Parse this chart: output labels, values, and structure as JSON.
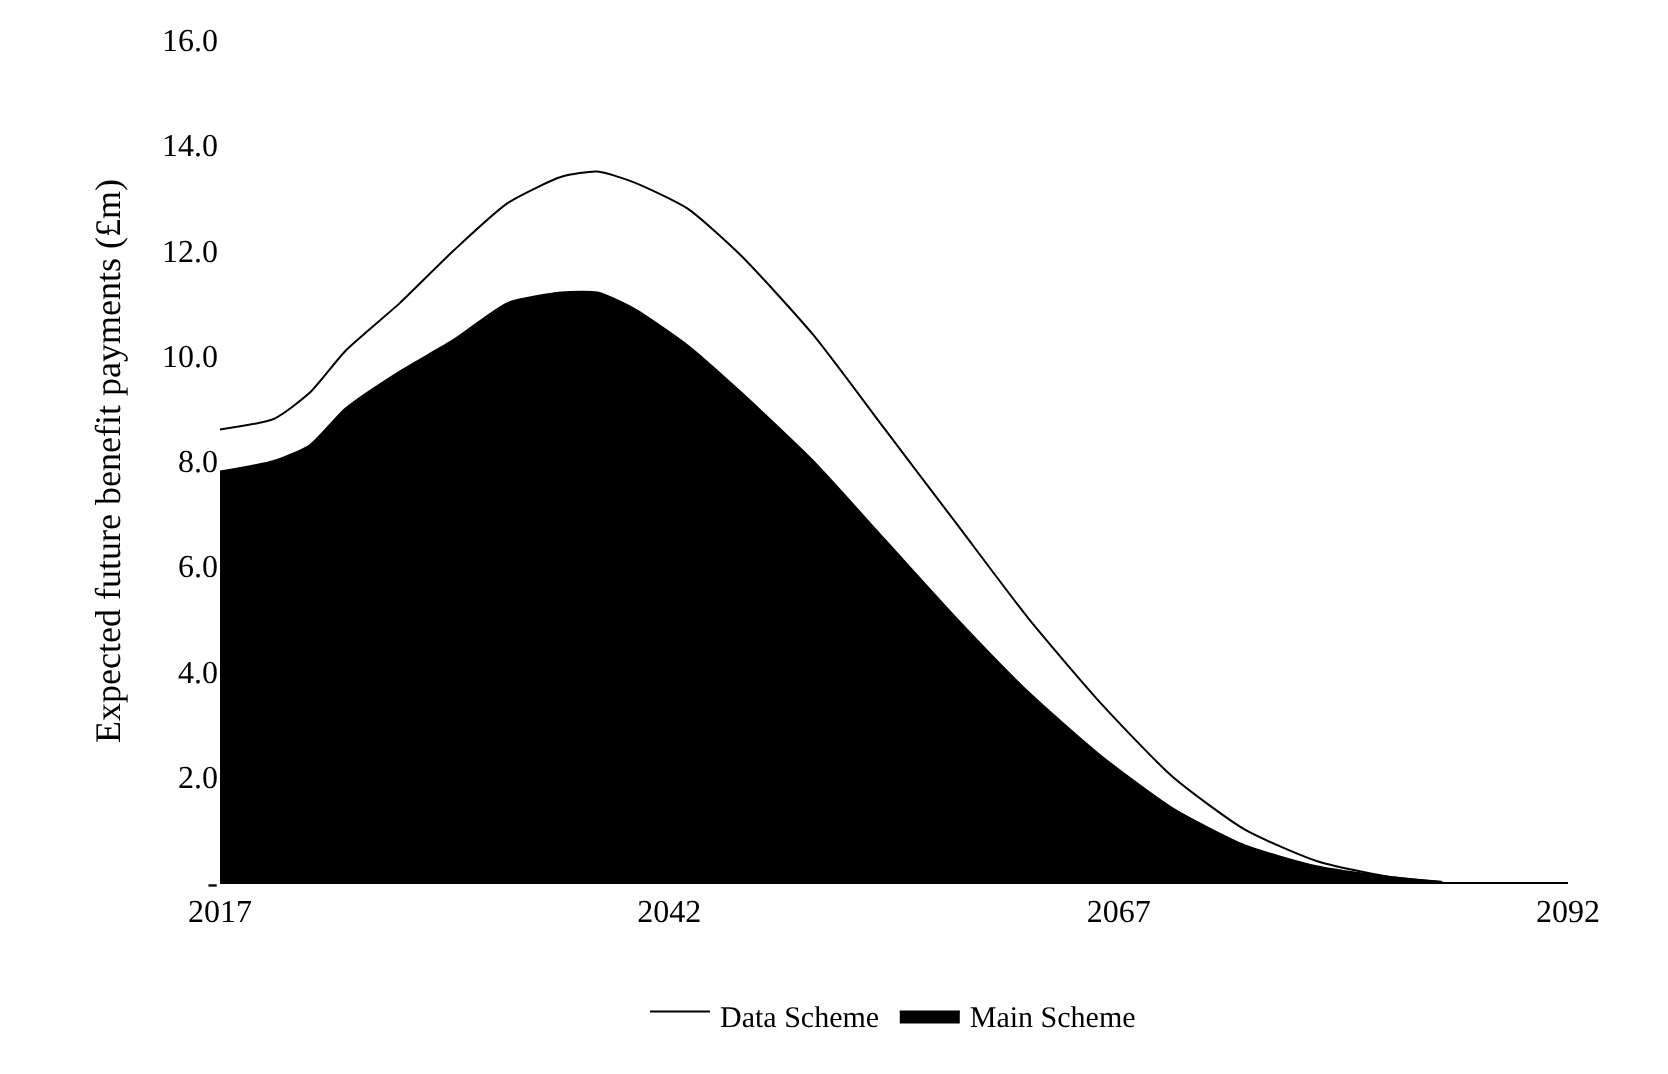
{
  "chart_data": {
    "type": "area",
    "stacked": true,
    "ylabel": "Expected future benefit payments (£m)",
    "x": [
      2017,
      2020,
      2022,
      2024,
      2027,
      2030,
      2033,
      2036,
      2038,
      2040,
      2043,
      2046,
      2050,
      2054,
      2058,
      2062,
      2066,
      2070,
      2074,
      2078,
      2082,
      2085
    ],
    "series": [
      {
        "name": "Main Scheme",
        "color": "#000000",
        "values": [
          7.8,
          8.0,
          8.3,
          9.0,
          9.7,
          10.3,
          11.0,
          11.2,
          11.2,
          10.9,
          10.2,
          9.3,
          8.0,
          6.5,
          5.0,
          3.6,
          2.4,
          1.4,
          0.7,
          0.3,
          0.1,
          0.0
        ]
      },
      {
        "name": "Data Scheme",
        "color": "#ffffff",
        "values": [
          0.8,
          0.8,
          1.0,
          1.1,
          1.3,
          1.7,
          1.9,
          2.2,
          2.3,
          2.4,
          2.6,
          2.6,
          2.4,
          2.1,
          1.8,
          1.4,
          1.0,
          0.6,
          0.3,
          0.1,
          0.0,
          0.0
        ]
      }
    ],
    "xlim": [
      2017,
      2092
    ],
    "xticks": [
      2017,
      2042,
      2067,
      2092
    ],
    "ylim": [
      0,
      16
    ],
    "yticks": [
      {
        "value": 0,
        "label": "-"
      },
      {
        "value": 2,
        "label": "2.0"
      },
      {
        "value": 4,
        "label": "4.0"
      },
      {
        "value": 6,
        "label": "6.0"
      },
      {
        "value": 8,
        "label": "8.0"
      },
      {
        "value": 10,
        "label": "10.0"
      },
      {
        "value": 12,
        "label": "12.0"
      },
      {
        "value": 14,
        "label": "14.0"
      },
      {
        "value": 16,
        "label": "16.0"
      }
    ],
    "legend": "bottom"
  }
}
